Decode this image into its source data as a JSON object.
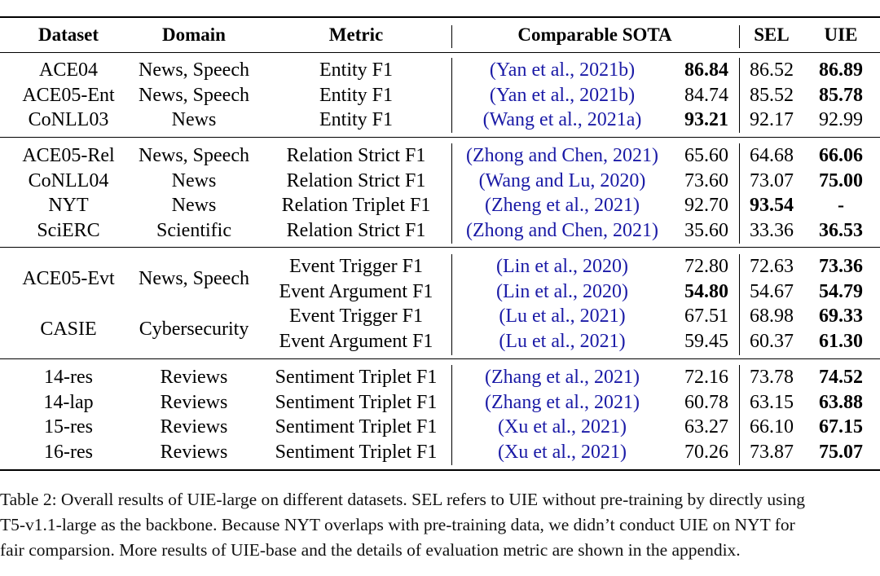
{
  "table": {
    "headers": [
      "Dataset",
      "Domain",
      "Metric",
      "Comparable SOTA",
      "SEL",
      "UIE"
    ],
    "groups": [
      {
        "rows": [
          {
            "dataset": "ACE04",
            "domain": "News, Speech",
            "metric": "Entity F1",
            "cite_authors": "Yan et al.",
            "cite_year": "2021b",
            "sota": "86.84",
            "sota_bold": true,
            "sel": "86.52",
            "sel_bold": false,
            "uie": "86.89",
            "uie_bold": true
          },
          {
            "dataset": "ACE05-Ent",
            "domain": "News, Speech",
            "metric": "Entity F1",
            "cite_authors": "Yan et al.",
            "cite_year": "2021b",
            "sota": "84.74",
            "sota_bold": false,
            "sel": "85.52",
            "sel_bold": false,
            "uie": "85.78",
            "uie_bold": true
          },
          {
            "dataset": "CoNLL03",
            "domain": "News",
            "metric": "Entity F1",
            "cite_authors": "Wang et al.",
            "cite_year": "2021a",
            "sota": "93.21",
            "sota_bold": true,
            "sel": "92.17",
            "sel_bold": false,
            "uie": "92.99",
            "uie_bold": false
          }
        ]
      },
      {
        "rows": [
          {
            "dataset": "ACE05-Rel",
            "domain": "News, Speech",
            "metric": "Relation Strict F1",
            "cite_authors": "Zhong and Chen",
            "cite_year": "2021",
            "sota": "65.60",
            "sota_bold": false,
            "sel": "64.68",
            "sel_bold": false,
            "uie": "66.06",
            "uie_bold": true
          },
          {
            "dataset": "CoNLL04",
            "domain": "News",
            "metric": "Relation Strict F1",
            "cite_authors": "Wang and Lu",
            "cite_year": "2020",
            "sota": "73.60",
            "sota_bold": false,
            "sel": "73.07",
            "sel_bold": false,
            "uie": "75.00",
            "uie_bold": true
          },
          {
            "dataset": "NYT",
            "domain": "News",
            "metric": "Relation Triplet F1",
            "cite_authors": "Zheng et al.",
            "cite_year": "2021",
            "sota": "92.70",
            "sota_bold": false,
            "sel": "93.54",
            "sel_bold": true,
            "uie": "-",
            "uie_bold": true
          },
          {
            "dataset": "SciERC",
            "domain": "Scientific",
            "metric": "Relation Strict F1",
            "cite_authors": "Zhong and Chen",
            "cite_year": "2021",
            "sota": "35.60",
            "sota_bold": false,
            "sel": "33.36",
            "sel_bold": false,
            "uie": "36.53",
            "uie_bold": true
          }
        ]
      },
      {
        "rows": [
          {
            "dataset": "ACE05-Evt",
            "domain": "News, Speech",
            "metric": "Event Trigger F1",
            "cite_authors": "Lin et al.",
            "cite_year": "2020",
            "sota": "72.80",
            "sota_bold": false,
            "sel": "72.63",
            "sel_bold": false,
            "uie": "73.36",
            "uie_bold": true
          },
          {
            "dataset": "",
            "domain": "",
            "metric": "Event Argument F1",
            "cite_authors": "Lin et al.",
            "cite_year": "2020",
            "sota": "54.80",
            "sota_bold": true,
            "sel": "54.67",
            "sel_bold": false,
            "uie": "54.79",
            "uie_bold": true
          },
          {
            "dataset": "CASIE",
            "domain": "Cybersecurity",
            "metric": "Event Trigger F1",
            "cite_authors": "Lu et al.",
            "cite_year": "2021",
            "sota": "67.51",
            "sota_bold": false,
            "sel": "68.98",
            "sel_bold": false,
            "uie": "69.33",
            "uie_bold": true
          },
          {
            "dataset": "",
            "domain": "",
            "metric": "Event Argument F1",
            "cite_authors": "Lu et al.",
            "cite_year": "2021",
            "sota": "59.45",
            "sota_bold": false,
            "sel": "60.37",
            "sel_bold": false,
            "uie": "61.30",
            "uie_bold": true
          }
        ]
      },
      {
        "rows": [
          {
            "dataset": "14-res",
            "domain": "Reviews",
            "metric": "Sentiment Triplet F1",
            "cite_authors": "Zhang et al.",
            "cite_year": "2021",
            "sota": "72.16",
            "sota_bold": false,
            "sel": "73.78",
            "sel_bold": false,
            "uie": "74.52",
            "uie_bold": true
          },
          {
            "dataset": "14-lap",
            "domain": "Reviews",
            "metric": "Sentiment Triplet F1",
            "cite_authors": "Zhang et al.",
            "cite_year": "2021",
            "sota": "60.78",
            "sota_bold": false,
            "sel": "63.15",
            "sel_bold": false,
            "uie": "63.88",
            "uie_bold": true
          },
          {
            "dataset": "15-res",
            "domain": "Reviews",
            "metric": "Sentiment Triplet F1",
            "cite_authors": "Xu et al.",
            "cite_year": "2021",
            "sota": "63.27",
            "sota_bold": false,
            "sel": "66.10",
            "sel_bold": false,
            "uie": "67.15",
            "uie_bold": true
          },
          {
            "dataset": "16-res",
            "domain": "Reviews",
            "metric": "Sentiment Triplet F1",
            "cite_authors": "Xu et al.",
            "cite_year": "2021",
            "sota": "70.26",
            "sota_bold": false,
            "sel": "73.87",
            "sel_bold": false,
            "uie": "75.07",
            "uie_bold": true
          }
        ]
      }
    ]
  },
  "caption": {
    "line1": "Table 2: Overall results of UIE-large on different datasets. SEL refers to UIE without pre-training by directly using",
    "line2": "T5-v1.1-large as the backbone. Because NYT overlaps with pre-training data, we didn’t conduct UIE on NYT for",
    "line3": "fair comparsion. More results of UIE-base and the details of evaluation metric are shown in the appendix."
  },
  "colors": {
    "citation": "#1a1aa6",
    "text": "#000000"
  }
}
